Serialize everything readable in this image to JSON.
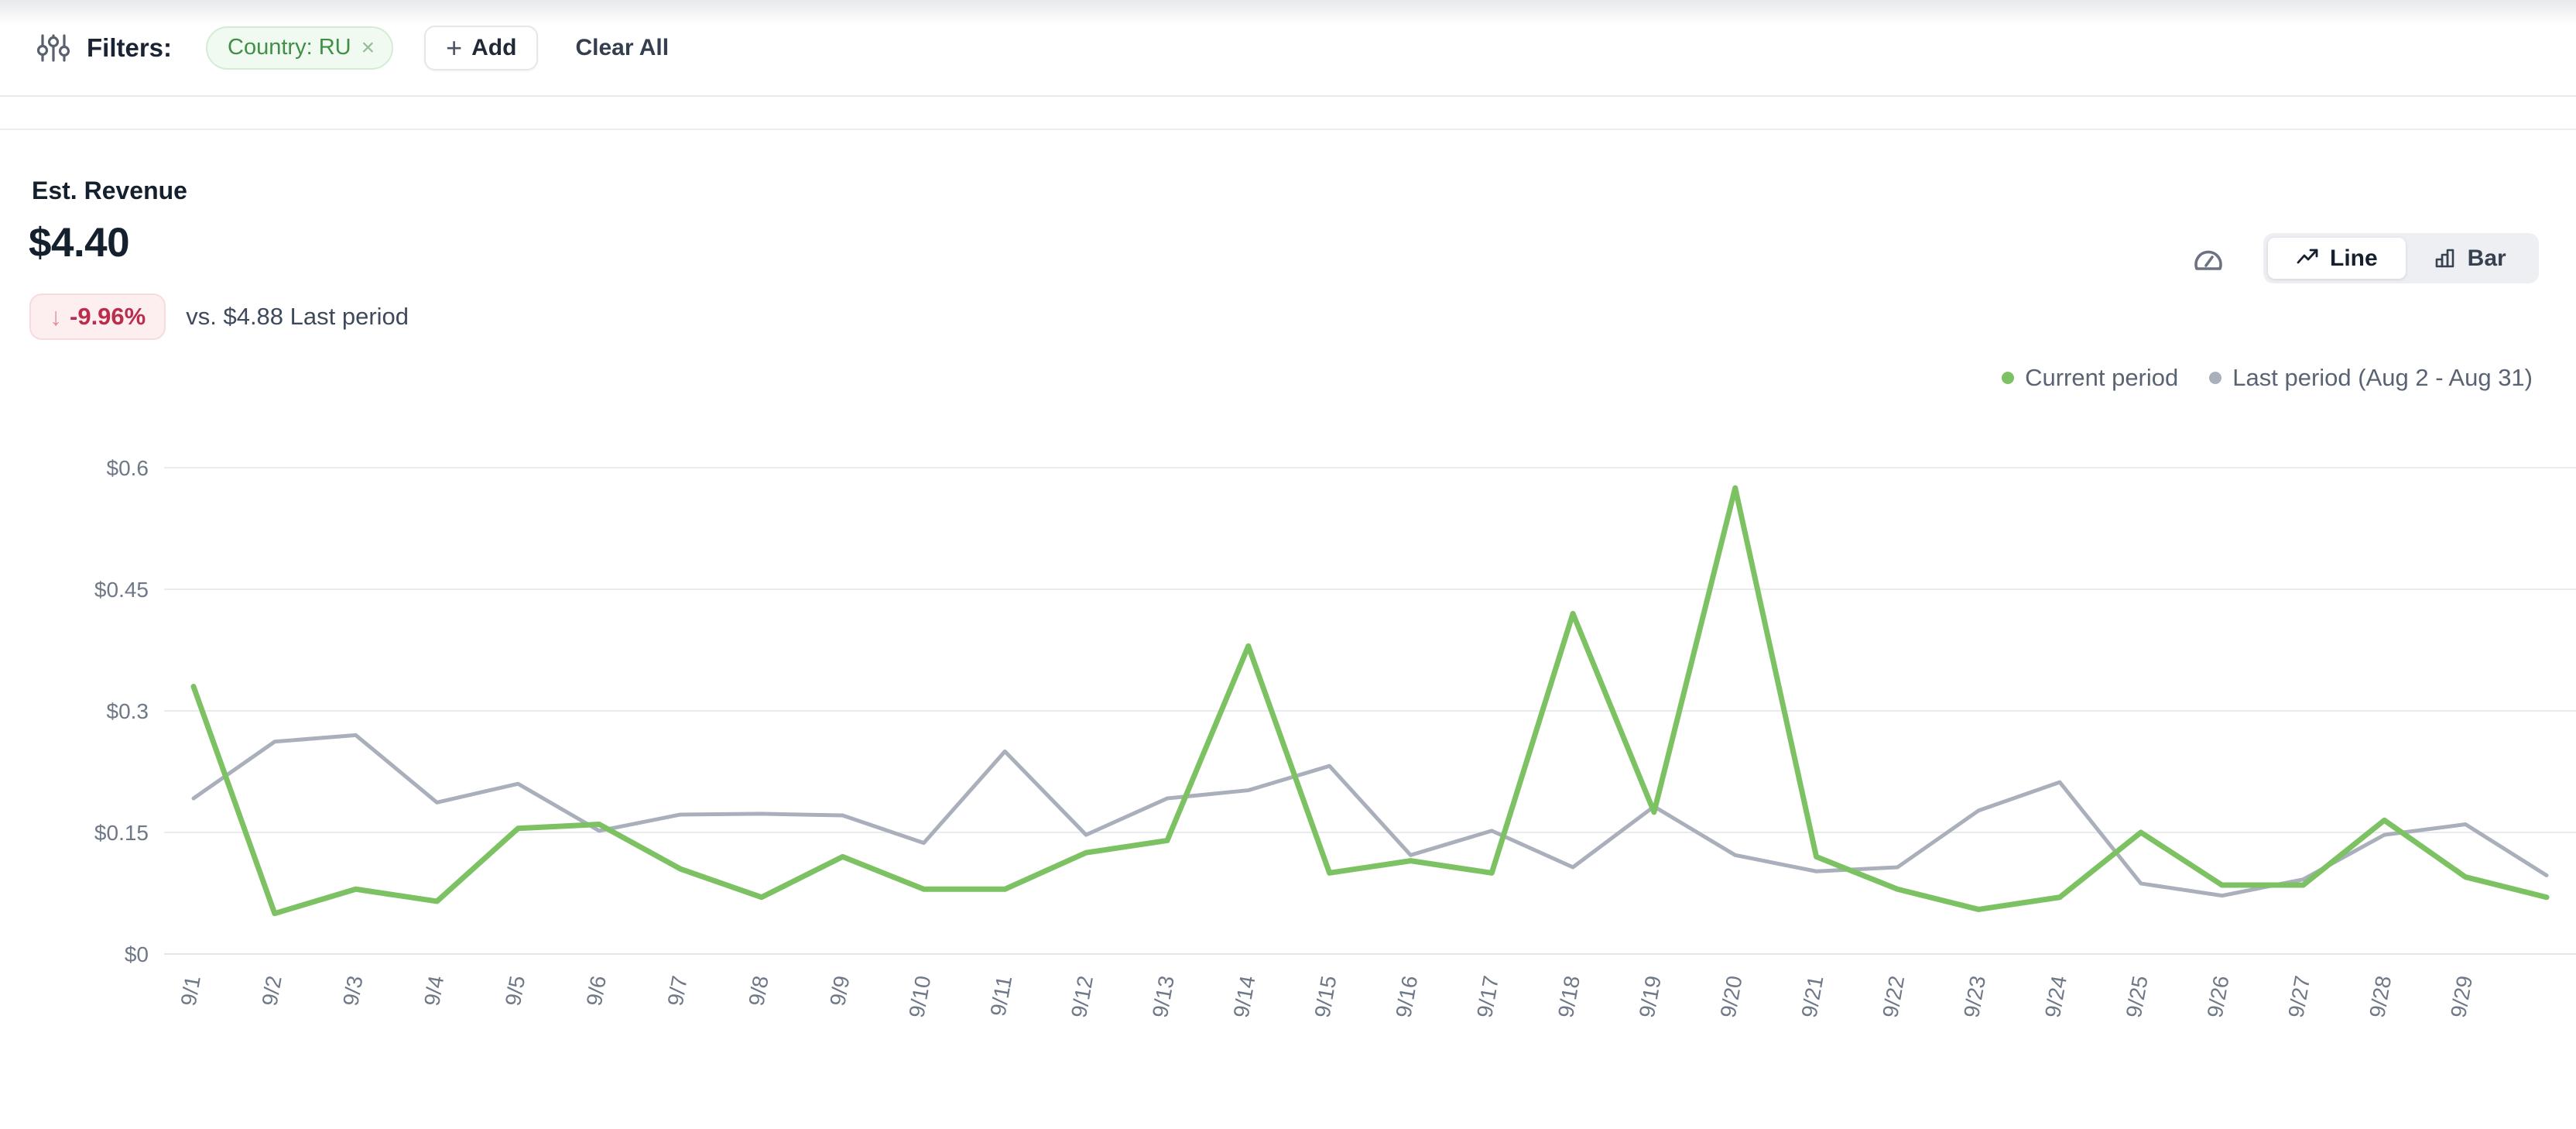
{
  "filters_bar": {
    "label": "Filters:",
    "chip": {
      "label": "Country: RU",
      "remove_symbol": "×"
    },
    "add_button": {
      "icon": "+",
      "label": "Add"
    },
    "clear_all_label": "Clear All"
  },
  "metric": {
    "title": "Est. Revenue",
    "value": "$4.40",
    "change_badge": {
      "arrow": "↓",
      "text": "-9.96%"
    },
    "comparison": "vs. $4.88 Last period"
  },
  "chart_controls": {
    "line_label": "Line",
    "bar_label": "Bar",
    "active": "Line"
  },
  "legend": {
    "current": "Current period",
    "last": "Last period (Aug 2 - Aug 31)"
  },
  "colors": {
    "accent_green": "#7cc162",
    "muted_gray": "#a9afbb",
    "badge_red_text": "#ba2d4c",
    "badge_red_bg": "#fdeeef",
    "chip_green_text": "#3f8f47",
    "grid_line": "#e9ebef",
    "axis_label": "#6e7887"
  },
  "chart_data": {
    "type": "line",
    "x": [
      "9/1",
      "9/2",
      "9/3",
      "9/4",
      "9/5",
      "9/6",
      "9/7",
      "9/8",
      "9/9",
      "9/10",
      "9/11",
      "9/12",
      "9/13",
      "9/14",
      "9/15",
      "9/16",
      "9/17",
      "9/18",
      "9/19",
      "9/20",
      "9/21",
      "9/22",
      "9/23",
      "9/24",
      "9/25",
      "9/26",
      "9/27",
      "9/28",
      "9/29",
      ""
    ],
    "series": [
      {
        "name": "Last period (Aug 2 - Aug 31)",
        "color": "#a9afbb",
        "stroke_width": 5,
        "values": [
          0.192,
          0.262,
          0.27,
          0.187,
          0.21,
          0.152,
          0.172,
          0.173,
          0.171,
          0.137,
          0.25,
          0.147,
          0.192,
          0.202,
          0.232,
          0.122,
          0.152,
          0.107,
          0.182,
          0.122,
          0.102,
          0.107,
          0.177,
          0.212,
          0.087,
          0.072,
          0.092,
          0.147,
          0.16,
          0.097
        ]
      },
      {
        "name": "Current period",
        "color": "#7cc162",
        "stroke_width": 7,
        "values": [
          0.33,
          0.05,
          0.08,
          0.065,
          0.155,
          0.16,
          0.105,
          0.07,
          0.12,
          0.08,
          0.08,
          0.125,
          0.14,
          0.38,
          0.1,
          0.115,
          0.1,
          0.42,
          0.175,
          0.575,
          0.12,
          0.08,
          0.055,
          0.07,
          0.15,
          0.085,
          0.085,
          0.165,
          0.095,
          0.07
        ]
      }
    ],
    "yticks": [
      {
        "label": "$0",
        "value": 0
      },
      {
        "label": "$0.15",
        "value": 0.15
      },
      {
        "label": "$0.3",
        "value": 0.3
      },
      {
        "label": "$0.45",
        "value": 0.45
      },
      {
        "label": "$0.6",
        "value": 0.6
      }
    ],
    "ylim": [
      0,
      0.6
    ],
    "title": "Est. Revenue",
    "xlabel": "",
    "ylabel": "",
    "grid": "horizontal",
    "legend_position": "top-right"
  }
}
